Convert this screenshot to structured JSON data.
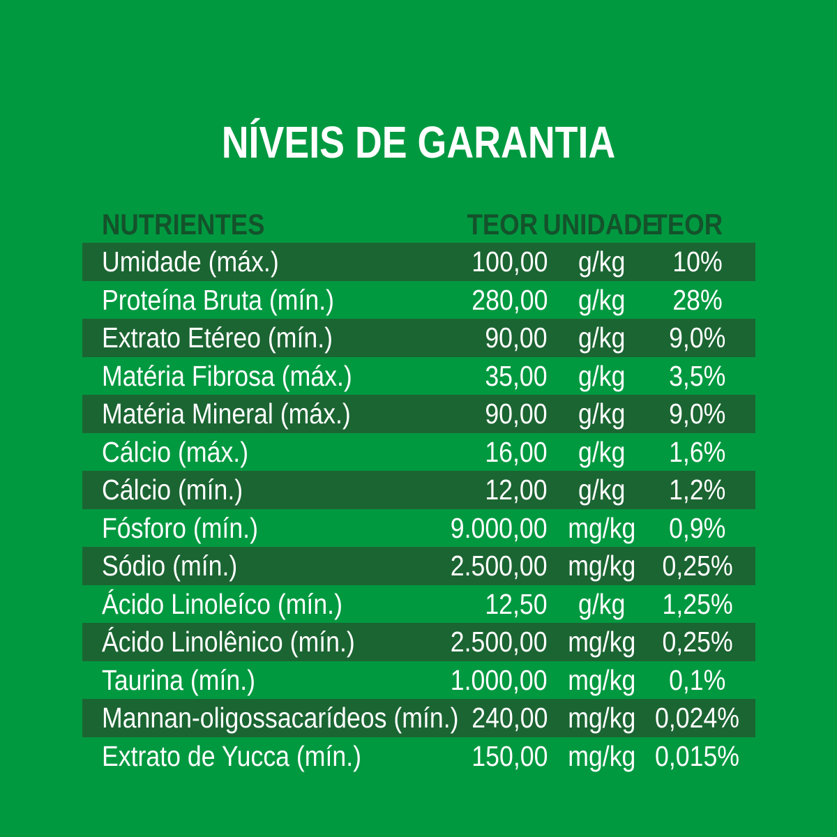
{
  "title": "NÍVEIS DE GARANTIA",
  "colors": {
    "background": "#019940",
    "stripe": "#1b6532",
    "header_text": "#14522b",
    "row_text": "#ffffff",
    "title_text": "#ffffff"
  },
  "table": {
    "headers": {
      "nutrientes": "NUTRIENTES",
      "teor": "TEOR",
      "unidade": "UNIDADE",
      "teor_pct": "TEOR"
    },
    "rows": [
      {
        "nutriente": "Umidade (máx.)",
        "teor": "100,00",
        "unidade": "g/kg",
        "teor_pct": "10%"
      },
      {
        "nutriente": "Proteína Bruta (mín.)",
        "teor": "280,00",
        "unidade": "g/kg",
        "teor_pct": "28%"
      },
      {
        "nutriente": "Extrato Etéreo (mín.)",
        "teor": "90,00",
        "unidade": "g/kg",
        "teor_pct": "9,0%"
      },
      {
        "nutriente": "Matéria Fibrosa (máx.)",
        "teor": "35,00",
        "unidade": "g/kg",
        "teor_pct": "3,5%"
      },
      {
        "nutriente": "Matéria Mineral (máx.)",
        "teor": "90,00",
        "unidade": "g/kg",
        "teor_pct": "9,0%"
      },
      {
        "nutriente": "Cálcio (máx.)",
        "teor": "16,00",
        "unidade": "g/kg",
        "teor_pct": "1,6%"
      },
      {
        "nutriente": "Cálcio (mín.)",
        "teor": "12,00",
        "unidade": "g/kg",
        "teor_pct": "1,2%"
      },
      {
        "nutriente": "Fósforo (mín.)",
        "teor": "9.000,00",
        "unidade": "mg/kg",
        "teor_pct": "0,9%"
      },
      {
        "nutriente": "Sódio (mín.)",
        "teor": "2.500,00",
        "unidade": "mg/kg",
        "teor_pct": "0,25%"
      },
      {
        "nutriente": "Ácido Linoleíco (mín.)",
        "teor": "12,50",
        "unidade": "g/kg",
        "teor_pct": "1,25%"
      },
      {
        "nutriente": "Ácido Linolênico (mín.)",
        "teor": "2.500,00",
        "unidade": "mg/kg",
        "teor_pct": "0,25%"
      },
      {
        "nutriente": "Taurina (mín.)",
        "teor": "1.000,00",
        "unidade": "mg/kg",
        "teor_pct": "0,1%"
      },
      {
        "nutriente": "Mannan-oligossacarídeos (mín.)",
        "teor": "240,00",
        "unidade": "mg/kg",
        "teor_pct": "0,024%"
      },
      {
        "nutriente": "Extrato de Yucca (mín.)",
        "teor": "150,00",
        "unidade": "mg/kg",
        "teor_pct": "0,015%"
      }
    ]
  }
}
